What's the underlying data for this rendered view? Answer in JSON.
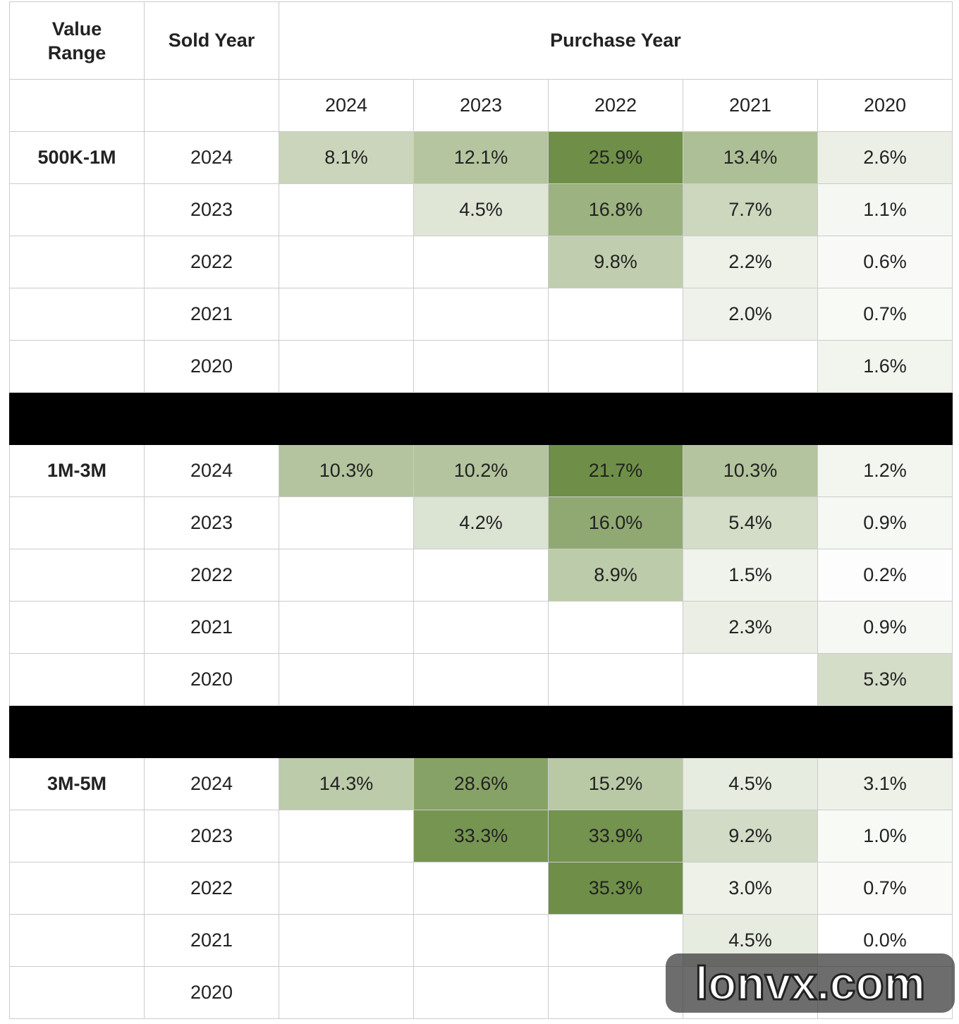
{
  "header": {
    "value_range": "Value Range",
    "sold_year": "Sold Year",
    "purchase_year": "Purchase Year",
    "years": [
      "2024",
      "2023",
      "2022",
      "2021",
      "2020"
    ]
  },
  "groups": [
    {
      "label": "500K-1M",
      "rows": [
        {
          "sold": "2024",
          "cells": [
            "8.1%",
            "12.1%",
            "25.9%",
            "13.4%",
            "2.6%"
          ]
        },
        {
          "sold": "2023",
          "cells": [
            null,
            "4.5%",
            "16.8%",
            "7.7%",
            "1.1%"
          ]
        },
        {
          "sold": "2022",
          "cells": [
            null,
            null,
            "9.8%",
            "2.2%",
            "0.6%"
          ]
        },
        {
          "sold": "2021",
          "cells": [
            null,
            null,
            null,
            "2.0%",
            "0.7%"
          ]
        },
        {
          "sold": "2020",
          "cells": [
            null,
            null,
            null,
            null,
            "1.6%"
          ]
        }
      ]
    },
    {
      "label": "1M-3M",
      "rows": [
        {
          "sold": "2024",
          "cells": [
            "10.3%",
            "10.2%",
            "21.7%",
            "10.3%",
            "1.2%"
          ]
        },
        {
          "sold": "2023",
          "cells": [
            null,
            "4.2%",
            "16.0%",
            "5.4%",
            "0.9%"
          ]
        },
        {
          "sold": "2022",
          "cells": [
            null,
            null,
            "8.9%",
            "1.5%",
            "0.2%"
          ]
        },
        {
          "sold": "2021",
          "cells": [
            null,
            null,
            null,
            "2.3%",
            "0.9%"
          ]
        },
        {
          "sold": "2020",
          "cells": [
            null,
            null,
            null,
            null,
            "5.3%"
          ]
        }
      ]
    },
    {
      "label": "3M-5M",
      "rows": [
        {
          "sold": "2024",
          "cells": [
            "14.3%",
            "28.6%",
            "15.2%",
            "4.5%",
            "3.1%"
          ]
        },
        {
          "sold": "2023",
          "cells": [
            null,
            "33.3%",
            "33.9%",
            "9.2%",
            "1.0%"
          ]
        },
        {
          "sold": "2022",
          "cells": [
            null,
            null,
            "35.3%",
            "3.0%",
            "0.7%"
          ]
        },
        {
          "sold": "2021",
          "cells": [
            null,
            null,
            null,
            "4.5%",
            "0.0%"
          ]
        },
        {
          "sold": "2020",
          "cells": [
            null,
            null,
            null,
            null,
            null
          ]
        }
      ]
    }
  ],
  "watermark": "lonvx.com"
}
